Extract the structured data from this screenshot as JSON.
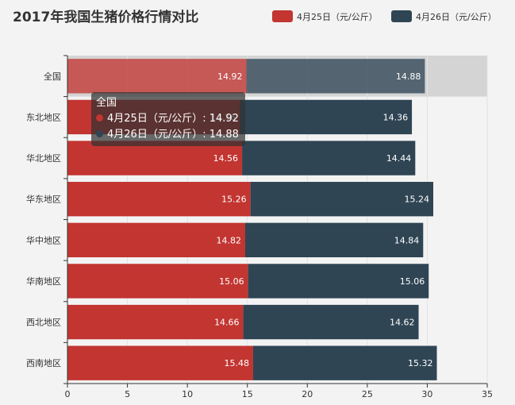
{
  "colors": {
    "s1": "#c23531",
    "s2": "#2f4554",
    "highlight": "#d4d4d4",
    "axis": "#333333",
    "grid": "#e2e2e2"
  },
  "chart_data": {
    "type": "bar",
    "orientation": "horizontal",
    "stacked": true,
    "title": "2017年我国生猪价格行情对比",
    "categories": [
      "全国",
      "东北地区",
      "华北地区",
      "华东地区",
      "华中地区",
      "华南地区",
      "西北地区",
      "西南地区"
    ],
    "series": [
      {
        "name": "4月25日（元/公斤）",
        "values": [
          14.92,
          14.36,
          14.56,
          15.26,
          14.82,
          15.06,
          14.66,
          15.48
        ]
      },
      {
        "name": "4月26日（元/公斤）",
        "values": [
          14.88,
          14.36,
          14.44,
          15.24,
          14.84,
          15.06,
          14.62,
          15.32
        ]
      }
    ],
    "xlim": [
      0,
      35
    ],
    "xticks": [
      0,
      5,
      10,
      15,
      20,
      25,
      30,
      35
    ],
    "legend": "top-right",
    "grid": true
  },
  "tooltip": {
    "title": "全国",
    "line1": "4月25日（元/公斤）: 14.92",
    "line2": "4月26日（元/公斤）: 14.88"
  }
}
